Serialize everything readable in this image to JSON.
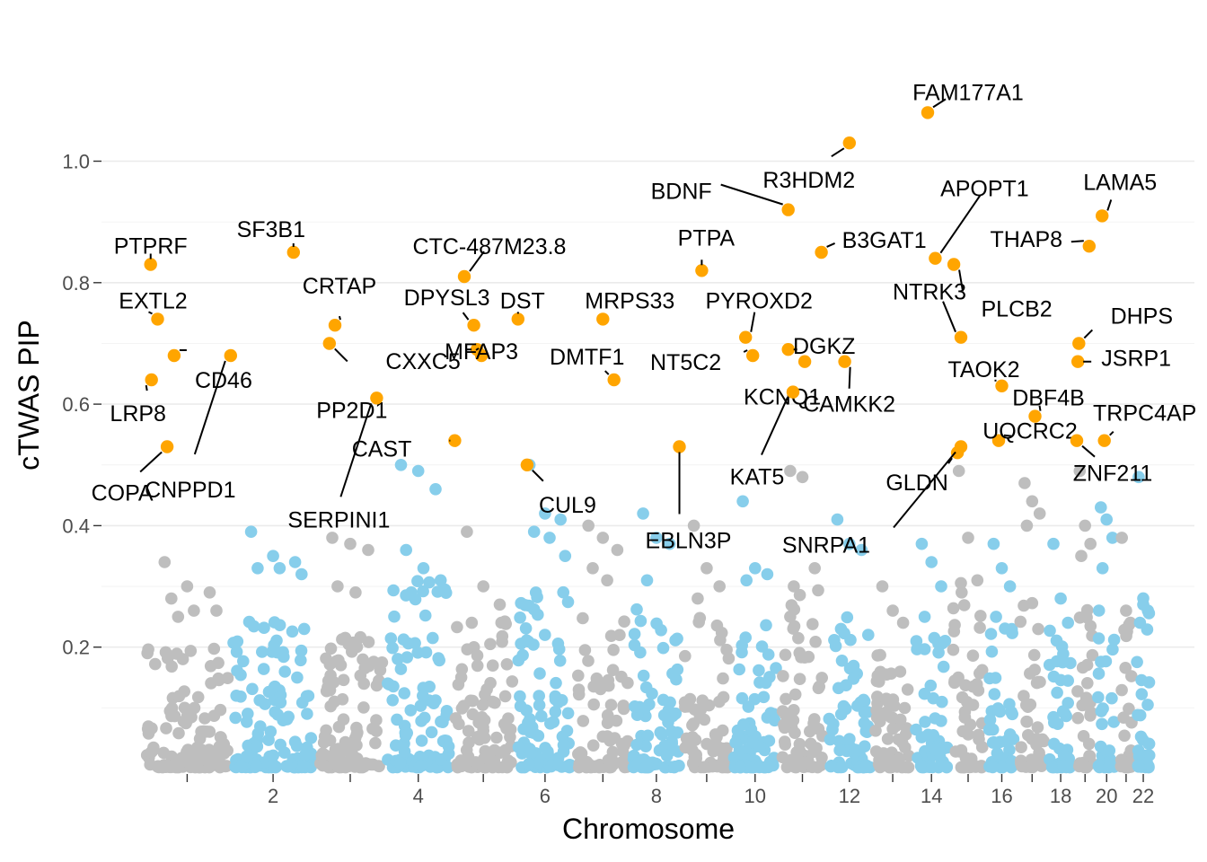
{
  "chart_data": {
    "type": "scatter",
    "title": "",
    "xlabel": "Chromosome",
    "ylabel": "cTWAS PIP",
    "x_tick_labels": [
      "2",
      "4",
      "6",
      "8",
      "10",
      "12",
      "14",
      "16",
      "18",
      "20",
      "22"
    ],
    "y_tick_labels": [
      "0.2",
      "0.4",
      "0.6",
      "0.8",
      "1.0"
    ],
    "y_ticks": [
      0.2,
      0.4,
      0.6,
      0.8,
      1.0
    ],
    "ylim": [
      0,
      1.1
    ],
    "grid": true,
    "legend": "none",
    "colors": {
      "odd_chromosome": "#bebebe",
      "even_chromosome": "#87ceeb",
      "highlight": "#ffa500"
    },
    "chromosomes": [
      {
        "chr": 1,
        "max": 0.34,
        "tops": [
          0.34,
          0.3,
          0.29,
          0.28,
          0.26,
          0.26,
          0.25
        ]
      },
      {
        "chr": 2,
        "max": 0.39,
        "tops": [
          0.39,
          0.35,
          0.34,
          0.33,
          0.33,
          0.32
        ]
      },
      {
        "chr": 3,
        "max": 0.38,
        "tops": [
          0.38,
          0.37,
          0.36,
          0.3,
          0.29
        ]
      },
      {
        "chr": 4,
        "max": 0.5,
        "tops": [
          0.5,
          0.49,
          0.46,
          0.36,
          0.33,
          0.31,
          0.29
        ]
      },
      {
        "chr": 5,
        "max": 0.39,
        "tops": [
          0.39,
          0.3,
          0.27,
          0.24
        ]
      },
      {
        "chr": 6,
        "max": 0.5,
        "tops": [
          0.5,
          0.42,
          0.41,
          0.39,
          0.38,
          0.35
        ]
      },
      {
        "chr": 7,
        "max": 0.4,
        "tops": [
          0.4,
          0.38,
          0.36,
          0.33,
          0.31
        ]
      },
      {
        "chr": 8,
        "max": 0.42,
        "tops": [
          0.42,
          0.38,
          0.37,
          0.31
        ]
      },
      {
        "chr": 9,
        "max": 0.4,
        "tops": [
          0.4,
          0.33,
          0.3,
          0.28
        ]
      },
      {
        "chr": 10,
        "max": 0.44,
        "tops": [
          0.44,
          0.33,
          0.32,
          0.31
        ]
      },
      {
        "chr": 11,
        "max": 0.49,
        "tops": [
          0.49,
          0.48,
          0.33,
          0.3
        ]
      },
      {
        "chr": 12,
        "max": 0.41,
        "tops": [
          0.41,
          0.37,
          0.36,
          0.23
        ]
      },
      {
        "chr": 13,
        "max": 0.3,
        "tops": [
          0.3,
          0.26,
          0.24
        ]
      },
      {
        "chr": 14,
        "max": 0.37,
        "tops": [
          0.37,
          0.34,
          0.3,
          0.25
        ]
      },
      {
        "chr": 15,
        "max": 0.49,
        "tops": [
          0.49,
          0.38,
          0.31,
          0.29
        ]
      },
      {
        "chr": 16,
        "max": 0.37,
        "tops": [
          0.37,
          0.33,
          0.3,
          0.25
        ]
      },
      {
        "chr": 17,
        "max": 0.47,
        "tops": [
          0.47,
          0.44,
          0.42,
          0.4
        ]
      },
      {
        "chr": 18,
        "max": 0.37,
        "tops": [
          0.37,
          0.28,
          0.24
        ]
      },
      {
        "chr": 19,
        "max": 0.49,
        "tops": [
          0.49,
          0.4,
          0.37,
          0.35
        ]
      },
      {
        "chr": 20,
        "max": 0.43,
        "tops": [
          0.43,
          0.41,
          0.38,
          0.33
        ]
      },
      {
        "chr": 21,
        "max": 0.38,
        "tops": [
          0.38,
          0.26,
          0.24
        ]
      },
      {
        "chr": 22,
        "max": 0.48,
        "tops": [
          0.48,
          0.27,
          0.26,
          0.24
        ]
      }
    ],
    "highlighted_genes": [
      {
        "gene": "PTPRF",
        "chr": 1,
        "pip": 0.83
      },
      {
        "gene": "EXTL2",
        "chr": 1,
        "pip": 0.74
      },
      {
        "gene": "LRP8",
        "chr": 1,
        "pip": 0.64
      },
      {
        "gene": "COPA",
        "chr": 1,
        "pip": 0.53
      },
      {
        "gene": "CD46",
        "chr": 1,
        "pip": 0.68
      },
      {
        "gene": "SF3B1",
        "chr": 2,
        "pip": 0.85
      },
      {
        "gene": "CRTAP",
        "chr": 3,
        "pip": 0.73
      },
      {
        "gene": "PP2D1",
        "chr": 3,
        "pip": 0.7
      },
      {
        "gene": "CNPPD1",
        "chr": 2,
        "pip": 0.68
      },
      {
        "gene": "SERPINI1",
        "chr": 3,
        "pip": 0.61
      },
      {
        "gene": "CTC-487M23.8",
        "chr": 5,
        "pip": 0.81
      },
      {
        "gene": "DPYSL3",
        "chr": 5,
        "pip": 0.73
      },
      {
        "gene": "DST",
        "chr": 6,
        "pip": 0.74
      },
      {
        "gene": "CXXC5",
        "chr": 5,
        "pip": 0.69
      },
      {
        "gene": "MFAP3",
        "chr": 5,
        "pip": 0.68
      },
      {
        "gene": "DMTF1",
        "chr": 7,
        "pip": 0.64
      },
      {
        "gene": "CAST",
        "chr": 5,
        "pip": 0.54
      },
      {
        "gene": "CUL9",
        "chr": 6,
        "pip": 0.5
      },
      {
        "gene": "MRPS33",
        "chr": 7,
        "pip": 0.74
      },
      {
        "gene": "EBLN3P",
        "chr": 8,
        "pip": 0.53
      },
      {
        "gene": "PTPA",
        "chr": 9,
        "pip": 0.82
      },
      {
        "gene": "BDNF",
        "chr": 11,
        "pip": 0.92
      },
      {
        "gene": "R3HDM2",
        "chr": 12,
        "pip": 1.03
      },
      {
        "gene": "PYROXD2",
        "chr": 10,
        "pip": 0.71
      },
      {
        "gene": "NT5C2",
        "chr": 10,
        "pip": 0.68
      },
      {
        "gene": "KCNQ1",
        "chr": 11,
        "pip": 0.67
      },
      {
        "gene": "DGKZ",
        "chr": 11,
        "pip": 0.69
      },
      {
        "gene": "B3GAT1",
        "chr": 11,
        "pip": 0.85
      },
      {
        "gene": "KAT5",
        "chr": 11,
        "pip": 0.62
      },
      {
        "gene": "CAMKK2",
        "chr": 12,
        "pip": 0.67
      },
      {
        "gene": "FAM177A1",
        "chr": 14,
        "pip": 1.08
      },
      {
        "gene": "APOPT1",
        "chr": 14,
        "pip": 0.84
      },
      {
        "gene": "NTRK3",
        "chr": 15,
        "pip": 0.71
      },
      {
        "gene": "PLCB2",
        "chr": 15,
        "pip": 0.83
      },
      {
        "gene": "TAOK2",
        "chr": 16,
        "pip": 0.63
      },
      {
        "gene": "DBF4B",
        "chr": 17,
        "pip": 0.58
      },
      {
        "gene": "UQCRC2",
        "chr": 16,
        "pip": 0.54
      },
      {
        "gene": "GLDN",
        "chr": 15,
        "pip": 0.52
      },
      {
        "gene": "SNRPA1",
        "chr": 15,
        "pip": 0.53
      },
      {
        "gene": "THAP8",
        "chr": 19,
        "pip": 0.86
      },
      {
        "gene": "LAMA5",
        "chr": 20,
        "pip": 0.91
      },
      {
        "gene": "DHPS",
        "chr": 19,
        "pip": 0.7
      },
      {
        "gene": "JSRP1",
        "chr": 19,
        "pip": 0.67
      },
      {
        "gene": "TRPC4AP",
        "chr": 20,
        "pip": 0.54
      },
      {
        "gene": "ZNF211",
        "chr": 19,
        "pip": 0.54
      }
    ]
  }
}
